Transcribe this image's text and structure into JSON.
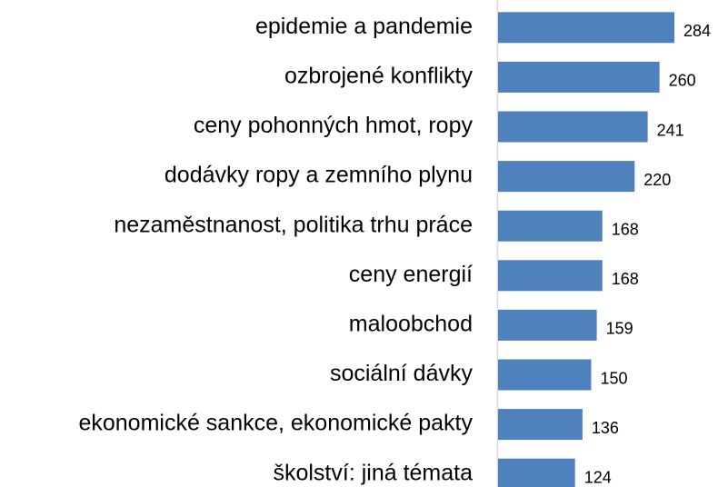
{
  "chart_data": {
    "type": "bar",
    "orientation": "horizontal",
    "categories": [
      "epidemie a pandemie",
      "ozbrojené konflikty",
      "ceny pohonných hmot, ropy",
      "dodávky ropy a zemního plynu",
      "nezaměstnanost, politika trhu práce",
      "ceny energií",
      "maloobchod",
      "sociální dávky",
      "ekonomické sankce, ekonomické pakty",
      "školství: jiná témata"
    ],
    "values": [
      284,
      260,
      241,
      220,
      168,
      168,
      159,
      150,
      136,
      124
    ],
    "color": "#4f81bd"
  }
}
